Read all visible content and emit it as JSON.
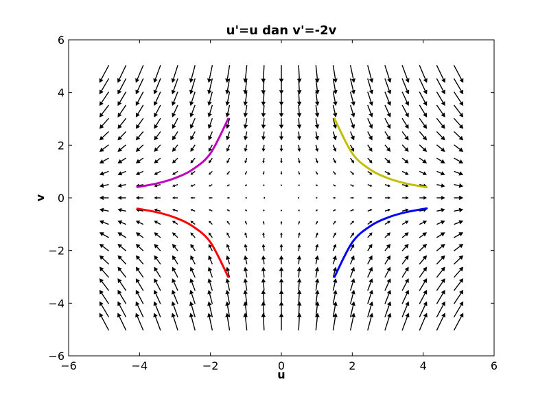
{
  "chart_data": {
    "type": "quiver",
    "title": "u'=u dan v'=-2v",
    "xlabel": "u",
    "ylabel": "v",
    "xlim": [
      -6,
      6
    ],
    "ylim": [
      -6,
      6
    ],
    "xticks": [
      -6,
      -4,
      -2,
      0,
      2,
      4,
      6
    ],
    "yticks": [
      -6,
      -4,
      -2,
      0,
      2,
      4,
      6
    ],
    "grid": false,
    "vector_field": {
      "du": "u",
      "dv": "-2v",
      "grid_x": {
        "start": -5.0,
        "stop": 5.0,
        "count": 21
      },
      "grid_y": {
        "start": -4.7,
        "stop": 4.7,
        "count": 21
      },
      "color": "#000000"
    },
    "series": [
      {
        "type": "line",
        "color": "#bf00bf",
        "x": [
          -4.06,
          -3.5,
          -3.0,
          -2.5,
          -2.0,
          -1.5
        ],
        "y": [
          0.41,
          0.55,
          0.75,
          1.08,
          1.69,
          3.0
        ]
      },
      {
        "type": "line",
        "color": "#bfbf00",
        "x": [
          1.5,
          2.0,
          2.5,
          3.0,
          3.5,
          4.1
        ],
        "y": [
          3.0,
          1.69,
          1.08,
          0.75,
          0.55,
          0.4
        ]
      },
      {
        "type": "line",
        "color": "#ff0000",
        "x": [
          -4.06,
          -3.5,
          -3.0,
          -2.5,
          -2.0,
          -1.5
        ],
        "y": [
          -0.41,
          -0.55,
          -0.75,
          -1.08,
          -1.69,
          -3.0
        ]
      },
      {
        "type": "line",
        "color": "#0000ff",
        "x": [
          1.5,
          2.0,
          2.5,
          3.0,
          3.5,
          4.1
        ],
        "y": [
          -3.0,
          -1.69,
          -1.08,
          -0.75,
          -0.55,
          -0.4
        ]
      }
    ]
  }
}
